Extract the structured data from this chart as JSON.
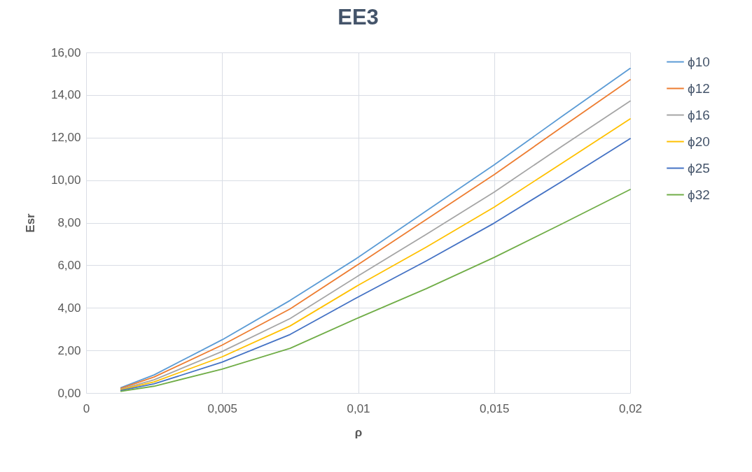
{
  "chart_data": {
    "type": "line",
    "title": "EE3",
    "xlabel": "ρ",
    "ylabel": "Esr",
    "x": [
      0.00128,
      0.0025,
      0.005,
      0.0075,
      0.01,
      0.0125,
      0.015,
      0.0175,
      0.02
    ],
    "series": [
      {
        "name": "ϕ10",
        "color": "#5b9bd5",
        "values": [
          0.25,
          0.85,
          2.5,
          4.35,
          6.37,
          8.55,
          10.72,
          13.0,
          15.25
        ]
      },
      {
        "name": "ϕ12",
        "color": "#ed7d31",
        "values": [
          0.22,
          0.75,
          2.25,
          3.95,
          6.04,
          8.15,
          10.26,
          12.5,
          14.72
        ]
      },
      {
        "name": "ϕ16",
        "color": "#a5a5a5",
        "values": [
          0.18,
          0.62,
          1.95,
          3.5,
          5.5,
          7.45,
          9.44,
          11.6,
          13.72
        ]
      },
      {
        "name": "ϕ20",
        "color": "#ffc000",
        "values": [
          0.15,
          0.52,
          1.7,
          3.15,
          5.06,
          6.85,
          8.73,
          10.8,
          12.88
        ]
      },
      {
        "name": "ϕ25",
        "color": "#4472c4",
        "values": [
          0.12,
          0.43,
          1.45,
          2.75,
          4.51,
          6.2,
          7.98,
          9.95,
          11.95
        ]
      },
      {
        "name": "ϕ32",
        "color": "#70ad47",
        "values": [
          0.08,
          0.32,
          1.12,
          2.1,
          3.53,
          4.9,
          6.37,
          7.95,
          9.56
        ]
      }
    ],
    "xlim": [
      0,
      0.02
    ],
    "xticks": [
      0,
      {
        "value": 0.005,
        "label": "0,005"
      },
      {
        "value": 0.01,
        "label": "0,01"
      },
      {
        "value": 0.015,
        "label": "0,015"
      },
      {
        "value": 0.02,
        "label": "0,02"
      }
    ],
    "ylim": [
      0,
      16
    ],
    "yticks": [
      {
        "value": 0,
        "label": "0,00"
      },
      {
        "value": 2,
        "label": "2,00"
      },
      {
        "value": 4,
        "label": "4,00"
      },
      {
        "value": 6,
        "label": "6,00"
      },
      {
        "value": 8,
        "label": "8,00"
      },
      {
        "value": 10,
        "label": "10,00"
      },
      {
        "value": 12,
        "label": "12,00"
      },
      {
        "value": 14,
        "label": "14,00"
      },
      {
        "value": 16,
        "label": "16,00"
      }
    ],
    "grid": true,
    "legend": "right",
    "marker": "none",
    "line_style": "solid"
  }
}
